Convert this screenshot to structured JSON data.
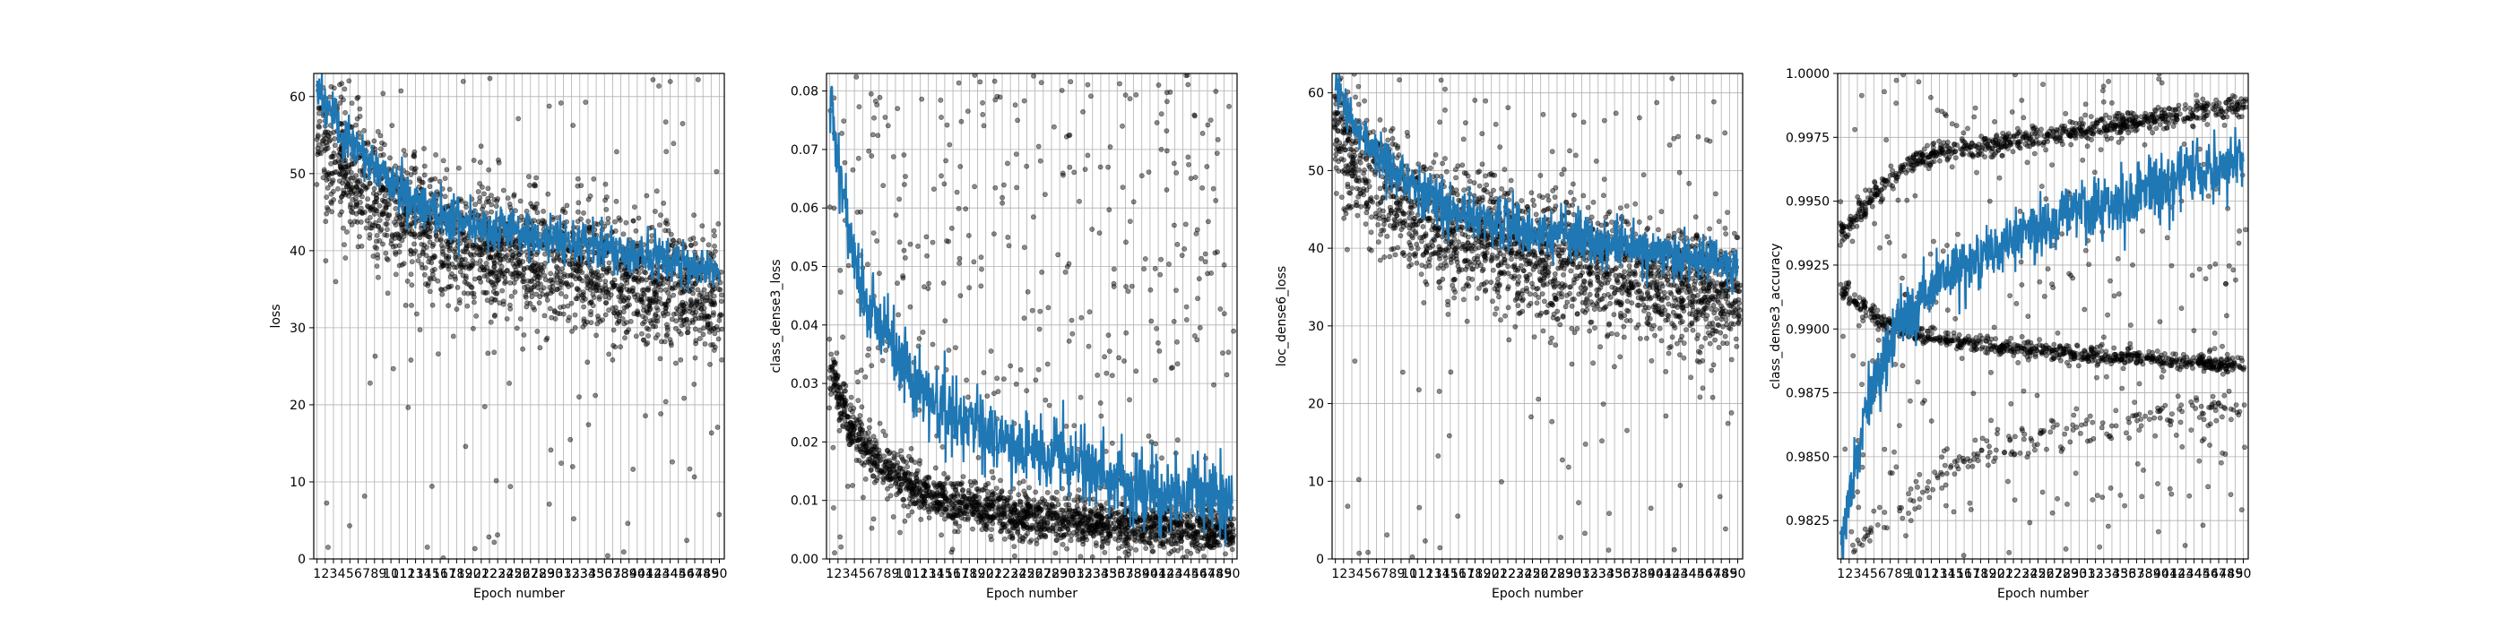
{
  "chart_data": [
    {
      "type": "scatter",
      "subtype": "scatter-with-line",
      "xlabel": "Epoch number",
      "ylabel": "loss",
      "x_ticks": [
        1,
        2,
        3,
        4,
        5,
        6,
        7,
        8,
        9,
        10,
        11,
        12,
        13,
        14,
        15,
        16,
        17,
        18,
        19,
        20,
        21,
        22,
        23,
        24,
        25,
        26,
        27,
        28,
        29,
        30,
        31,
        32,
        33,
        34,
        35,
        36,
        37,
        38,
        39,
        40,
        41,
        42,
        43,
        44,
        45,
        46,
        47,
        48,
        49,
        50
      ],
      "xlim": [
        0.6,
        50.6
      ],
      "ylim": [
        0,
        63
      ],
      "y_ticks": [
        0,
        10,
        20,
        30,
        40,
        50,
        60
      ],
      "grid": true,
      "mean_line": {
        "x": [
          1,
          2,
          3,
          4,
          5,
          6,
          7,
          8,
          9,
          10,
          11,
          12,
          13,
          14,
          15,
          16,
          17,
          18,
          19,
          20,
          21,
          22,
          23,
          24,
          25,
          26,
          27,
          28,
          29,
          30,
          31,
          32,
          33,
          34,
          35,
          36,
          37,
          38,
          39,
          40,
          41,
          42,
          43,
          44,
          45,
          46,
          47,
          48,
          49,
          50
        ],
        "y": [
          62,
          59,
          57,
          55,
          54,
          53,
          52,
          51,
          50,
          49,
          48,
          47,
          46.5,
          46,
          45.5,
          45,
          44.5,
          44.2,
          44,
          43.6,
          43.3,
          43,
          42.8,
          42.5,
          42.3,
          42.1,
          42,
          41.8,
          41.6,
          41.5,
          41.3,
          41.2,
          41,
          40.8,
          40.6,
          40.4,
          40.2,
          40,
          39.8,
          39.6,
          39.4,
          39.2,
          39,
          38.8,
          38.6,
          38.4,
          38.2,
          38,
          37.8,
          37.5
        ],
        "noise": 2.2
      },
      "scatter": {
        "y_center": [
          55,
          53,
          52,
          51,
          50,
          49,
          48,
          47,
          46,
          45,
          44.5,
          44,
          43.5,
          43,
          42.5,
          42,
          41.5,
          41,
          40.7,
          40.4,
          40.1,
          39.8,
          39.5,
          39.3,
          39,
          38.8,
          38.6,
          38.4,
          38.2,
          38,
          37.8,
          37.6,
          37.4,
          37.2,
          37,
          36.8,
          36.6,
          36.4,
          36.2,
          36,
          35.8,
          35.6,
          35.4,
          35.2,
          35,
          34.8,
          34.6,
          34.4,
          34.2,
          34
        ],
        "spread": 8,
        "outliers": 0.05,
        "count": 2300
      }
    },
    {
      "type": "scatter",
      "subtype": "scatter-with-line",
      "xlabel": "Epoch number",
      "ylabel": "class_dense3_loss",
      "x_ticks": [
        1,
        2,
        3,
        4,
        5,
        6,
        7,
        8,
        9,
        10,
        11,
        12,
        13,
        14,
        15,
        16,
        17,
        18,
        19,
        20,
        21,
        22,
        23,
        24,
        25,
        26,
        27,
        28,
        29,
        30,
        31,
        32,
        33,
        34,
        35,
        36,
        37,
        38,
        39,
        40,
        41,
        42,
        43,
        44,
        45,
        46,
        47,
        48,
        49,
        50
      ],
      "xlim": [
        0.6,
        50.6
      ],
      "ylim": [
        0,
        0.083
      ],
      "y_ticks": [
        0.0,
        0.01,
        0.02,
        0.03,
        0.04,
        0.05,
        0.06,
        0.07,
        0.08
      ],
      "y_tick_labels": [
        "0.00",
        "0.01",
        "0.02",
        "0.03",
        "0.04",
        "0.05",
        "0.06",
        "0.07",
        "0.08"
      ],
      "grid": true,
      "mean_line": {
        "x": [
          1,
          2,
          3,
          4,
          5,
          6,
          7,
          8,
          9,
          10,
          11,
          12,
          13,
          14,
          15,
          16,
          17,
          18,
          19,
          20,
          21,
          22,
          23,
          24,
          25,
          26,
          27,
          28,
          29,
          30,
          31,
          32,
          33,
          34,
          35,
          36,
          37,
          38,
          39,
          40,
          41,
          42,
          43,
          44,
          45,
          46,
          47,
          48,
          49,
          50
        ],
        "y": [
          0.08,
          0.068,
          0.058,
          0.052,
          0.047,
          0.043,
          0.04,
          0.037,
          0.035,
          0.033,
          0.031,
          0.029,
          0.028,
          0.027,
          0.026,
          0.025,
          0.024,
          0.023,
          0.022,
          0.0215,
          0.021,
          0.0205,
          0.02,
          0.0195,
          0.019,
          0.0185,
          0.018,
          0.0175,
          0.017,
          0.0165,
          0.016,
          0.0155,
          0.015,
          0.0148,
          0.0145,
          0.014,
          0.0135,
          0.013,
          0.0128,
          0.0125,
          0.012,
          0.0118,
          0.0115,
          0.0112,
          0.011,
          0.0108,
          0.0105,
          0.0102,
          0.01,
          0.0098
        ],
        "noise": 0.0045
      },
      "scatter": {
        "y_center": [
          0.03,
          0.026,
          0.023,
          0.021,
          0.019,
          0.017,
          0.016,
          0.015,
          0.014,
          0.013,
          0.012,
          0.0115,
          0.011,
          0.0105,
          0.01,
          0.0095,
          0.009,
          0.0088,
          0.0085,
          0.0082,
          0.008,
          0.0078,
          0.0076,
          0.0074,
          0.0072,
          0.007,
          0.0068,
          0.0066,
          0.0065,
          0.0064,
          0.0063,
          0.0062,
          0.0061,
          0.006,
          0.0059,
          0.0058,
          0.0057,
          0.0056,
          0.0055,
          0.0054,
          0.0053,
          0.0052,
          0.0051,
          0.005,
          0.0049,
          0.0048,
          0.0047,
          0.0046,
          0.0045,
          0.0044
        ],
        "spread": 0.004,
        "outliers": 0.22,
        "count": 2300
      }
    },
    {
      "type": "scatter",
      "subtype": "scatter-with-line",
      "xlabel": "Epoch number",
      "ylabel": "loc_dense6_loss",
      "x_ticks": [
        1,
        2,
        3,
        4,
        5,
        6,
        7,
        8,
        9,
        10,
        11,
        12,
        13,
        14,
        15,
        16,
        17,
        18,
        19,
        20,
        21,
        22,
        23,
        24,
        25,
        26,
        27,
        28,
        29,
        30,
        31,
        32,
        33,
        34,
        35,
        36,
        37,
        38,
        39,
        40,
        41,
        42,
        43,
        44,
        45,
        46,
        47,
        48,
        49,
        50
      ],
      "xlim": [
        0.6,
        50.6
      ],
      "ylim": [
        0,
        62.5
      ],
      "y_ticks": [
        0,
        10,
        20,
        30,
        40,
        50,
        60
      ],
      "grid": true,
      "mean_line": {
        "x": [
          1,
          2,
          3,
          4,
          5,
          6,
          7,
          8,
          9,
          10,
          11,
          12,
          13,
          14,
          15,
          16,
          17,
          18,
          19,
          20,
          21,
          22,
          23,
          24,
          25,
          26,
          27,
          28,
          29,
          30,
          31,
          32,
          33,
          34,
          35,
          36,
          37,
          38,
          39,
          40,
          41,
          42,
          43,
          44,
          45,
          46,
          47,
          48,
          49,
          50
        ],
        "y": [
          61.5,
          58.5,
          56.5,
          54.5,
          53.5,
          52.5,
          51.5,
          50.5,
          49.5,
          48.5,
          47.5,
          46.8,
          46.2,
          45.7,
          45.2,
          44.8,
          44.4,
          44.1,
          43.8,
          43.5,
          43.2,
          42.9,
          42.7,
          42.4,
          42.2,
          42,
          41.9,
          41.7,
          41.5,
          41.4,
          41.2,
          41.1,
          40.9,
          40.7,
          40.5,
          40.3,
          40.1,
          39.9,
          39.7,
          39.5,
          39.3,
          39.1,
          38.9,
          38.7,
          38.5,
          38.3,
          38.1,
          37.9,
          37.7,
          37.4
        ],
        "noise": 2.2
      },
      "scatter": {
        "y_center": [
          54.5,
          52.5,
          51.5,
          50.5,
          49.5,
          48.5,
          47.5,
          46.5,
          45.5,
          44.8,
          44.2,
          43.7,
          43.2,
          42.8,
          42.3,
          41.8,
          41.3,
          40.9,
          40.6,
          40.3,
          40,
          39.7,
          39.4,
          39.2,
          38.9,
          38.7,
          38.5,
          38.3,
          38.1,
          37.9,
          37.7,
          37.5,
          37.3,
          37.1,
          36.9,
          36.7,
          36.5,
          36.3,
          36.1,
          35.9,
          35.7,
          35.5,
          35.3,
          35.1,
          34.9,
          34.7,
          34.5,
          34.3,
          34.1,
          33.9
        ],
        "spread": 8,
        "outliers": 0.05,
        "count": 2300
      }
    },
    {
      "type": "scatter",
      "subtype": "scatter-with-line",
      "xlabel": "Epoch number",
      "ylabel": "class_dense3_accuracy",
      "x_ticks": [
        1,
        2,
        3,
        4,
        5,
        6,
        7,
        8,
        9,
        10,
        11,
        12,
        13,
        14,
        15,
        16,
        17,
        18,
        19,
        20,
        21,
        22,
        23,
        24,
        25,
        26,
        27,
        28,
        29,
        30,
        31,
        32,
        33,
        34,
        35,
        36,
        37,
        38,
        39,
        40,
        41,
        42,
        43,
        44,
        45,
        46,
        47,
        48,
        49,
        50
      ],
      "xlim": [
        0.6,
        50.6
      ],
      "ylim": [
        0.981,
        1.0
      ],
      "y_ticks": [
        0.9825,
        0.985,
        0.9875,
        0.99,
        0.9925,
        0.995,
        0.9975,
        1.0
      ],
      "y_tick_labels": [
        "0.9825",
        "0.9850",
        "0.9875",
        "0.9900",
        "0.9925",
        "0.9950",
        "0.9975",
        "1.0000"
      ],
      "grid": true,
      "mean_line": {
        "x": [
          1,
          2,
          3,
          4,
          5,
          6,
          7,
          8,
          9,
          10,
          11,
          12,
          13,
          14,
          15,
          16,
          17,
          18,
          19,
          20,
          21,
          22,
          23,
          24,
          25,
          26,
          27,
          28,
          29,
          30,
          31,
          32,
          33,
          34,
          35,
          36,
          37,
          38,
          39,
          40,
          41,
          42,
          43,
          44,
          45,
          46,
          47,
          48,
          49,
          50
        ],
        "y": [
          0.9813,
          0.9832,
          0.9852,
          0.9868,
          0.9878,
          0.9886,
          0.9893,
          0.9899,
          0.9904,
          0.9908,
          0.9912,
          0.9915,
          0.9918,
          0.992,
          0.9922,
          0.9924,
          0.9926,
          0.9928,
          0.993,
          0.9932,
          0.9934,
          0.9935,
          0.9937,
          0.9938,
          0.994,
          0.9941,
          0.9942,
          0.9944,
          0.9945,
          0.9946,
          0.9947,
          0.9948,
          0.9949,
          0.995,
          0.9951,
          0.9952,
          0.9953,
          0.9954,
          0.9955,
          0.9956,
          0.9957,
          0.9958,
          0.9959,
          0.996,
          0.9961,
          0.9962,
          0.9963,
          0.9964,
          0.9965,
          0.9966
        ],
        "noise": 0.0009
      },
      "upper_band": [
        0.9938,
        0.9942,
        0.9946,
        0.995,
        0.9954,
        0.9958,
        0.996,
        0.9963,
        0.9965,
        0.9966,
        0.9967,
        0.9968,
        0.9969,
        0.997,
        0.997,
        0.9971,
        0.9971,
        0.9972,
        0.9972,
        0.9973,
        0.9973,
        0.9974,
        0.9974,
        0.9975,
        0.9975,
        0.9976,
        0.9976,
        0.9977,
        0.9977,
        0.9978,
        0.9978,
        0.9979,
        0.9979,
        0.998,
        0.998,
        0.9981,
        0.9981,
        0.9982,
        0.9982,
        0.9983,
        0.9983,
        0.9984,
        0.9984,
        0.9985,
        0.9985,
        0.9986,
        0.9986,
        0.9987,
        0.9987,
        0.9988
      ],
      "middle_band": [
        0.9914,
        0.9911,
        0.9909,
        0.9906,
        0.9904,
        0.9902,
        0.9901,
        0.99,
        0.9899,
        0.9898,
        0.9897,
        0.9897,
        0.9896,
        0.9896,
        0.9895,
        0.9895,
        0.9894,
        0.9894,
        0.9894,
        0.9893,
        0.9893,
        0.9893,
        0.9892,
        0.9892,
        0.9892,
        0.9891,
        0.9891,
        0.9891,
        0.989,
        0.989,
        0.989,
        0.989,
        0.9889,
        0.9889,
        0.9889,
        0.9889,
        0.9888,
        0.9888,
        0.9888,
        0.9888,
        0.9887,
        0.9887,
        0.9887,
        0.9887,
        0.9887,
        0.9886,
        0.9886,
        0.9886,
        0.9886,
        0.9886
      ],
      "lower_band": [
        0.9812,
        0.9815,
        0.9818,
        0.982,
        0.9822,
        0.9825,
        0.9828,
        0.983,
        0.9833,
        0.9836,
        0.9839,
        0.9841,
        0.9843,
        0.9845,
        0.9847,
        0.9849,
        0.985,
        0.9851,
        0.9852,
        0.9853,
        0.9854,
        0.9855,
        0.9856,
        0.9857,
        0.9858,
        0.9859,
        0.9859,
        0.986,
        0.986,
        0.9861,
        0.9861,
        0.9862,
        0.9862,
        0.9863,
        0.9863,
        0.9864,
        0.9864,
        0.9865,
        0.9865,
        0.9866,
        0.9866,
        0.9866,
        0.9867,
        0.9867,
        0.9867,
        0.9868,
        0.9868,
        0.9868,
        0.9869,
        0.9869
      ],
      "scatter": {
        "count": 2000
      }
    }
  ]
}
